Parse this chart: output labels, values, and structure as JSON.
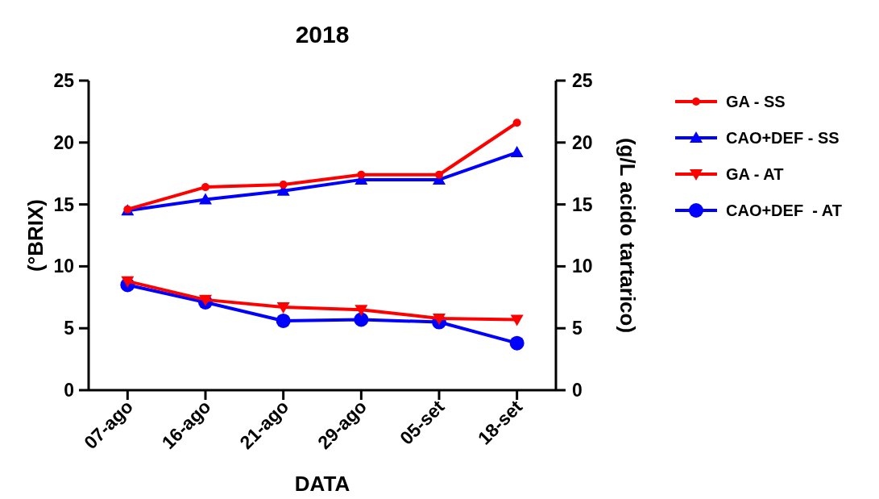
{
  "chart_data": {
    "type": "line",
    "title": "2018",
    "xlabel": "DATA",
    "ylabel": "(°BRIX)",
    "y2label": "(g/L acido tartarico)",
    "categories": [
      "07-ago",
      "16-ago",
      "21-ago",
      "29-ago",
      "05-set",
      "18-set"
    ],
    "ylim": [
      0,
      25
    ],
    "yticks": [
      0,
      5,
      10,
      15,
      20,
      25
    ],
    "y2lim": [
      0,
      25
    ],
    "y2ticks": [
      0,
      5,
      10,
      15,
      20,
      25
    ],
    "legend": "right",
    "grid": false,
    "series": [
      {
        "name": "GA - SS",
        "color": "#ff0000",
        "marker": "circle",
        "values": [
          14.6,
          16.4,
          16.6,
          17.4,
          17.4,
          21.6
        ]
      },
      {
        "name": "CAO+DEF - SS",
        "color": "#0000ff",
        "marker": "triangle",
        "values": [
          14.5,
          15.4,
          16.1,
          17.0,
          17.0,
          19.2
        ]
      },
      {
        "name": "GA - AT",
        "color": "#ff0000",
        "marker": "triangle-down",
        "values": [
          8.8,
          7.3,
          6.7,
          6.5,
          5.8,
          5.7
        ]
      },
      {
        "name": "CAO+DEF  - AT",
        "color": "#0000ff",
        "marker": "big-circle",
        "values": [
          8.5,
          7.1,
          5.6,
          5.7,
          5.5,
          3.8
        ]
      }
    ]
  }
}
